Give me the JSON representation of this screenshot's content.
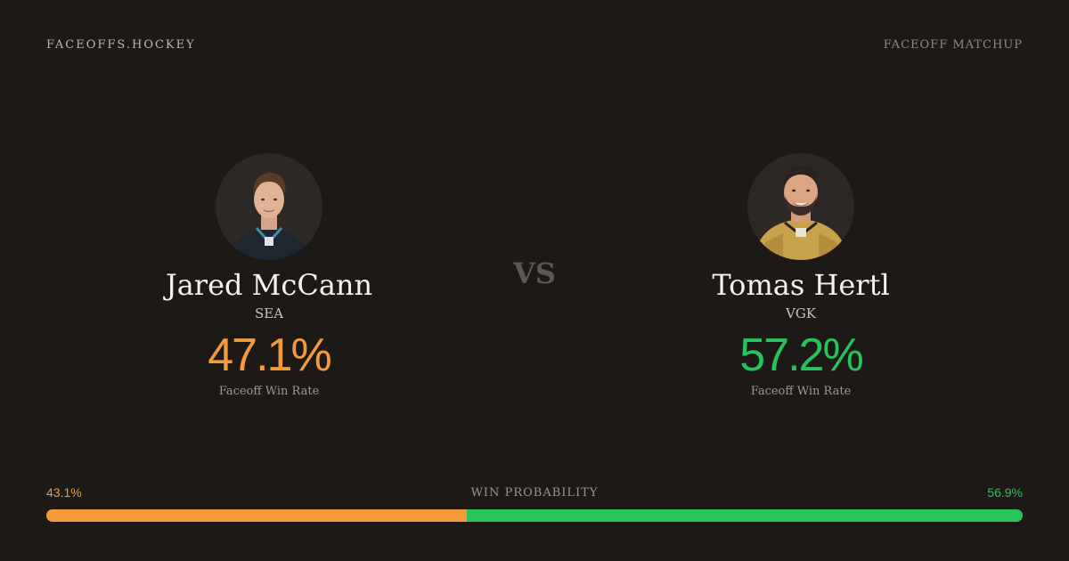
{
  "header": {
    "brand": "FACEOFFS.HOCKEY",
    "kicker": "FACEOFF MATCHUP"
  },
  "players": [
    {
      "name": "Jared McCann",
      "team": "SEA",
      "win_rate": "47.1%",
      "stat_label": "Faceoff Win Rate",
      "accent_color": "#f59a3c"
    },
    {
      "name": "Tomas Hertl",
      "team": "VGK",
      "win_rate": "57.2%",
      "stat_label": "Faceoff Win Rate",
      "accent_color": "#27c35c"
    }
  ],
  "vs_label": "VS",
  "win_probability": {
    "label": "WIN PROBABILITY",
    "left_value": "43.1%",
    "right_value": "56.9%",
    "left_fraction": 0.431,
    "right_fraction": 0.569
  },
  "colors": {
    "background": "#1c1917",
    "orange": "#f59a3c",
    "green": "#27c35c"
  }
}
